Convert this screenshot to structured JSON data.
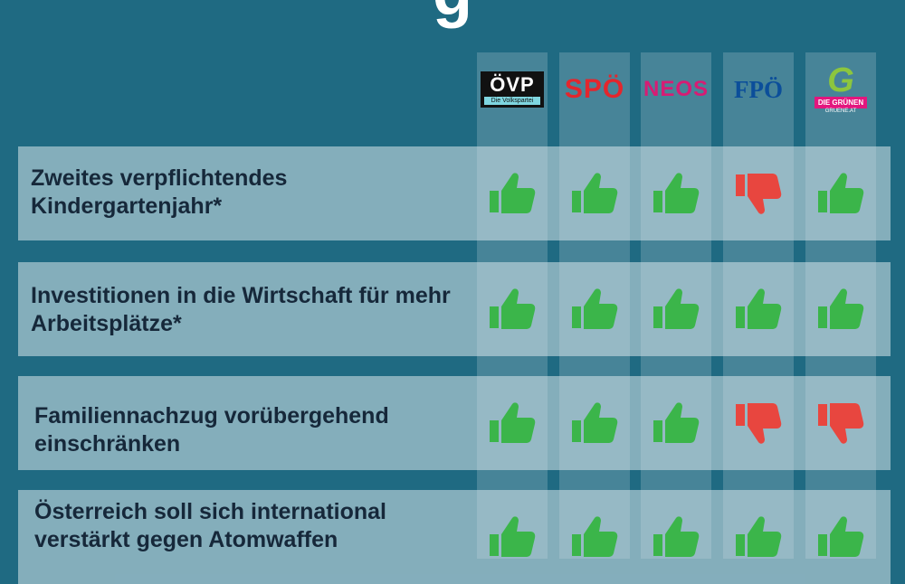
{
  "title_fragment": "g",
  "parties": [
    {
      "id": "ovp",
      "name": "ÖVP",
      "tagline": "Die Volkspartei"
    },
    {
      "id": "spo",
      "name": "SPÖ"
    },
    {
      "id": "neos",
      "name": "NEOS"
    },
    {
      "id": "fpo",
      "name": "FPÖ"
    },
    {
      "id": "gruene",
      "name": "DIE GRÜNEN",
      "url": "GRUENE.AT"
    }
  ],
  "rows": [
    {
      "label": "Zweites verpflichtendes Kindergartenjahr*",
      "votes": [
        "up",
        "up",
        "up",
        "down",
        "up"
      ]
    },
    {
      "label": "Investitionen in die Wirtschaft für mehr Arbeitsplätze*",
      "votes": [
        "up",
        "up",
        "up",
        "up",
        "up"
      ]
    },
    {
      "label": "Familiennachzug vorübergehend einschränken",
      "votes": [
        "up",
        "up",
        "up",
        "down",
        "down"
      ]
    },
    {
      "label": "Österreich soll sich international verstärkt gegen Atomwaffen",
      "votes": [
        "up",
        "up",
        "up",
        "up",
        "up"
      ]
    }
  ],
  "colors": {
    "background": "#1f6a82",
    "thumbs_up": "#3bb54a",
    "thumbs_down": "#e8463f"
  },
  "icons": {
    "up": "thumbs-up-icon",
    "down": "thumbs-down-icon"
  }
}
